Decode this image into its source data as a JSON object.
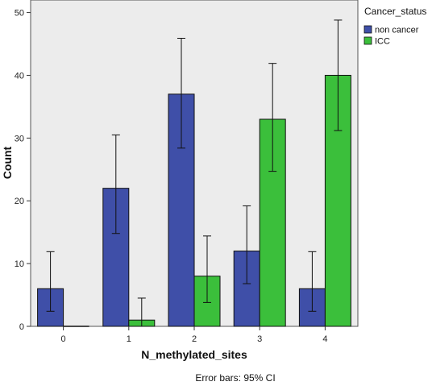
{
  "chart_data": {
    "type": "bar",
    "xlabel": "N_methylated_sites",
    "ylabel": "Count",
    "categories": [
      "0",
      "1",
      "2",
      "3",
      "4"
    ],
    "ylim": [
      0,
      52
    ],
    "yticks": [
      0,
      10,
      20,
      30,
      40,
      50
    ],
    "grid": false,
    "legend_title": "Cancer_status",
    "legend_position": "right",
    "footnote": "Error bars: 95% CI",
    "plot_background": "#ececec",
    "series": [
      {
        "name": "non cancer",
        "color": "#3f4fa8",
        "values": [
          6,
          22,
          37,
          12,
          6
        ],
        "ci_low": [
          2.4,
          14.8,
          28.4,
          6.8,
          2.4
        ],
        "ci_high": [
          11.9,
          30.5,
          45.9,
          19.2,
          11.9
        ]
      },
      {
        "name": "ICC",
        "color": "#3bbf3b",
        "values": [
          0,
          1,
          8,
          33,
          40
        ],
        "ci_low": [
          0,
          0,
          3.8,
          24.7,
          31.2
        ],
        "ci_high": [
          0,
          4.5,
          14.4,
          41.9,
          48.8
        ]
      }
    ]
  }
}
